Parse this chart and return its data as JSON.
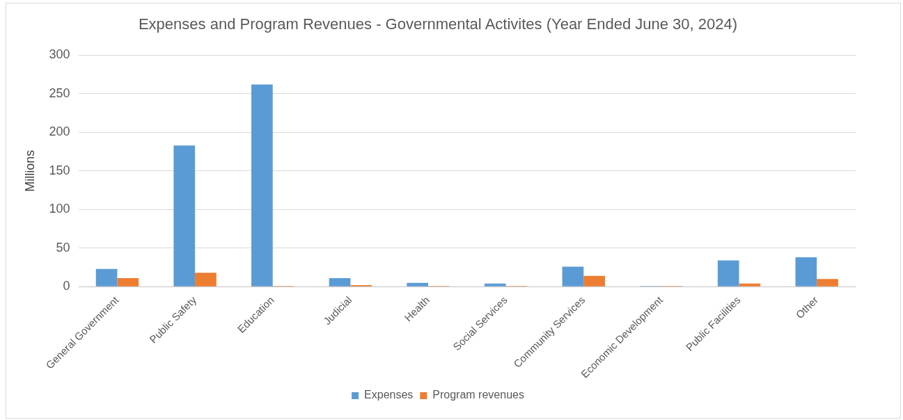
{
  "chart_data": {
    "type": "bar",
    "title": "Expenses and Program Revenues - Governmental Activites (Year Ended June 30, 2024)",
    "ylabel": "Millions",
    "categories": [
      "General Government",
      "Public Safety",
      "Education",
      "Judicial",
      "Health",
      "Social Services",
      "Community Services",
      "Economic Development",
      "Public Facilities",
      "Other"
    ],
    "series": [
      {
        "name": "Expenses",
        "color": "#5b9bd5",
        "values": [
          23,
          183,
          262,
          11,
          5,
          4,
          26,
          1,
          34,
          38
        ]
      },
      {
        "name": "Program revenues",
        "color": "#ed7d31",
        "values": [
          11,
          18,
          1,
          2,
          1,
          1,
          14,
          1,
          4,
          10
        ]
      }
    ],
    "ylim": [
      0,
      300
    ],
    "yticks": [
      0,
      50,
      100,
      150,
      200,
      250,
      300
    ],
    "grid": "y",
    "legend": "bottom"
  }
}
